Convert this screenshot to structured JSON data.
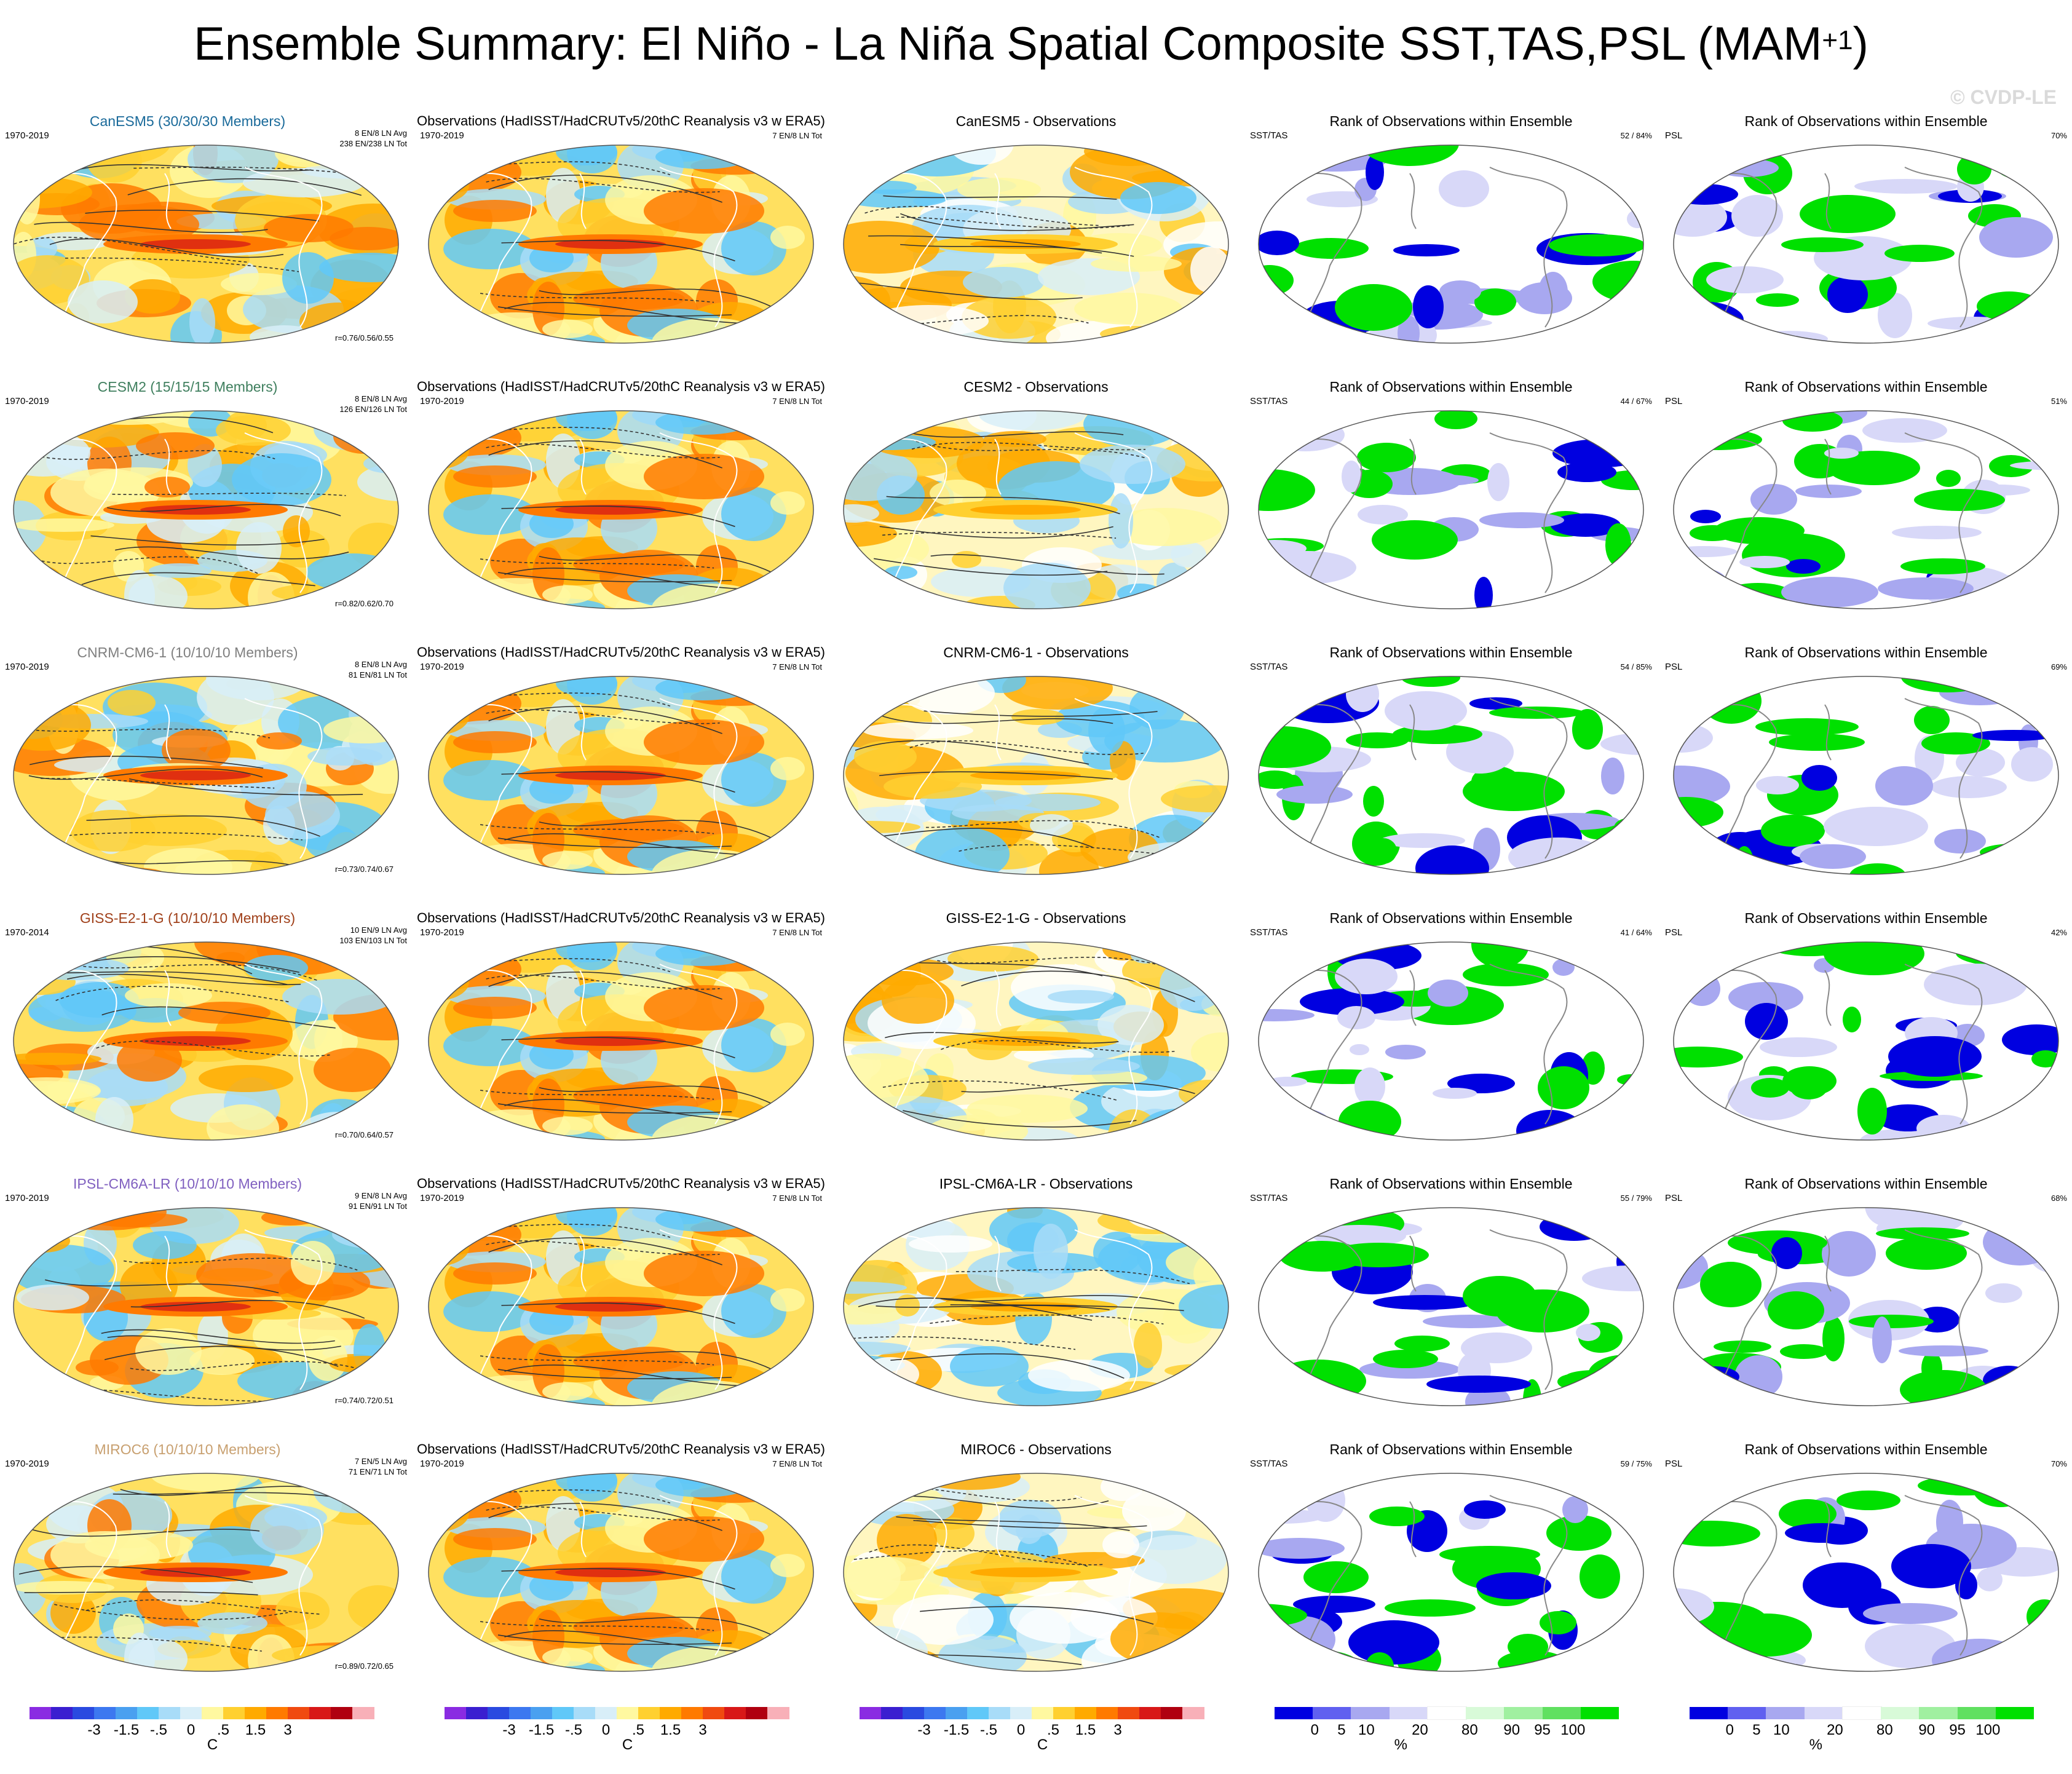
{
  "title": {
    "main": "Ensemble Summary: El Niño - La Niña Spatial Composite SST,TAS,PSL (MAM",
    "sup": "+1",
    "close": ")"
  },
  "watermark": "© CVDP-LE",
  "obs_title": "Observations (HadISST/HadCRUTv5/20thC Reanalysis v3 w ERA5)",
  "obs_period": "1970-2019",
  "obs_counts": "7 EN/8 LN Tot",
  "rank_title": "Rank of Observations within Ensemble",
  "sst_label": "SST/TAS",
  "psl_label": "PSL",
  "colors": {
    "model_title_0": "#1a6a9a",
    "model_title_1": "#3f7f5e",
    "model_title_2": "#808080",
    "model_title_3": "#a0401a",
    "model_title_4": "#8060c0",
    "model_title_5": "#c8a070"
  },
  "rows": [
    {
      "model": "CanESM5 (30/30/30 Members)",
      "period": "1970-2019",
      "avg": "8 EN/8 LN Avg",
      "tot": "238 EN/238 LN Tot",
      "r": "r=0.76/0.56/0.55",
      "diff": "CanESM5 - Observations",
      "sst_rank": "52 /  84%",
      "psl_rank": "70%"
    },
    {
      "model": "CESM2 (15/15/15 Members)",
      "period": "1970-2019",
      "avg": "8 EN/8 LN Avg",
      "tot": "126 EN/126 LN Tot",
      "r": "r=0.82/0.62/0.70",
      "diff": "CESM2 - Observations",
      "sst_rank": "44 /  67%",
      "psl_rank": "51%"
    },
    {
      "model": "CNRM-CM6-1 (10/10/10 Members)",
      "period": "1970-2019",
      "avg": "8 EN/8 LN Avg",
      "tot": "81 EN/81 LN Tot",
      "r": "r=0.73/0.74/0.67",
      "diff": "CNRM-CM6-1 - Observations",
      "sst_rank": "54 /  85%",
      "psl_rank": "69%"
    },
    {
      "model": "GISS-E2-1-G (10/10/10 Members)",
      "period": "1970-2014",
      "avg": "10 EN/9 LN Avg",
      "tot": "103 EN/103 LN Tot",
      "r": "r=0.70/0.64/0.57",
      "diff": "GISS-E2-1-G - Observations",
      "sst_rank": "41 /  64%",
      "psl_rank": "42%"
    },
    {
      "model": "IPSL-CM6A-LR (10/10/10 Members)",
      "period": "1970-2019",
      "avg": "9 EN/8 LN Avg",
      "tot": "91 EN/91 LN Tot",
      "r": "r=0.74/0.72/0.51",
      "diff": "IPSL-CM6A-LR - Observations",
      "sst_rank": "55 /  79%",
      "psl_rank": "68%"
    },
    {
      "model": "MIROC6 (10/10/10 Members)",
      "period": "1970-2019",
      "avg": "7 EN/5 LN Avg",
      "tot": "71 EN/71 LN Tot",
      "r": "r=0.89/0.72/0.65",
      "diff": "MIROC6 - Observations",
      "sst_rank": "59 /  75%",
      "psl_rank": "70%"
    }
  ],
  "chart_data": {
    "type": "heatmap",
    "layout": "6 rows x 5 columns of global map panels",
    "temp_colorbar": {
      "ticks": [
        "-3",
        "-1.5",
        "-.5",
        "0",
        ".5",
        "1.5",
        "3"
      ],
      "unit": "C",
      "colors": [
        "#8a2be2",
        "#3a1fd0",
        "#2a4ae0",
        "#3c78f0",
        "#4aa0f0",
        "#60c8f8",
        "#a8dcf8",
        "#d8eef8",
        "#fff8a0",
        "#ffd030",
        "#ffaa00",
        "#ff7a00",
        "#f04a10",
        "#d81818",
        "#b00010",
        "#f8b0b8"
      ]
    },
    "rank_colorbar": {
      "ticks": [
        "0",
        "5",
        "10",
        "20",
        "80",
        "90",
        "95",
        "100"
      ],
      "unit": "%",
      "colors": [
        "#0000e0",
        "#6060f0",
        "#a8a8f0",
        "#d8d8f8",
        "#ffffff",
        "#d8fad8",
        "#a0f0a0",
        "#60e060",
        "#00e000"
      ]
    }
  }
}
